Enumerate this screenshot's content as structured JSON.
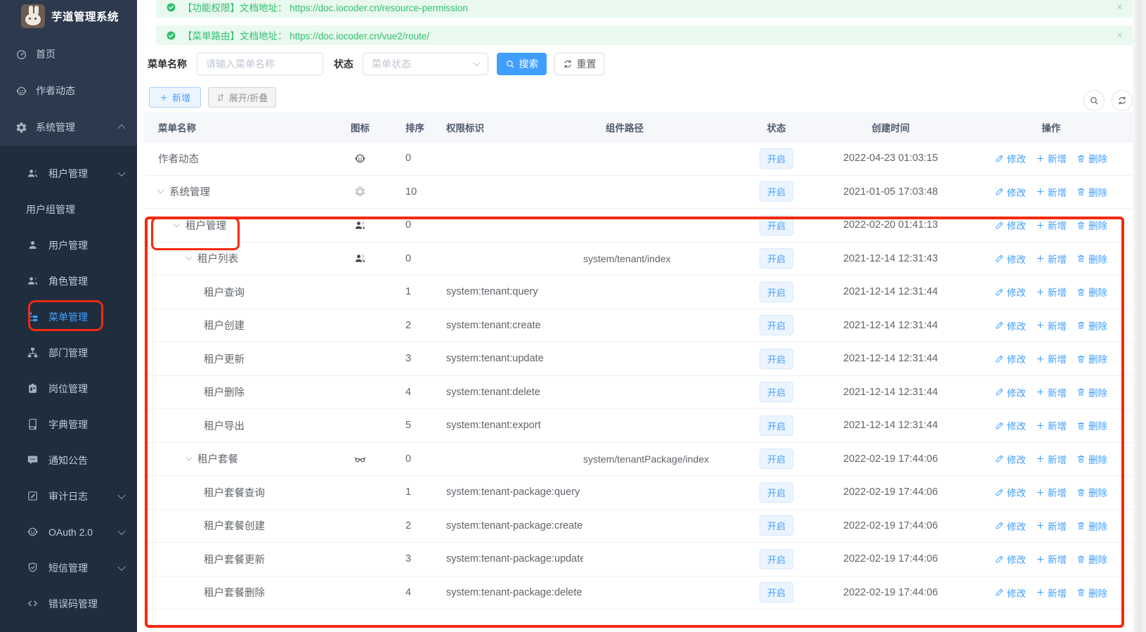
{
  "app": {
    "title": "芋道管理系统",
    "avatar_icon": "rabbit-avatar"
  },
  "alerts": [
    {
      "icon": "check-circle-icon",
      "text": "【功能权限】文档地址： https://doc.iocoder.cn/resource-permission",
      "close_icon": "close-icon"
    },
    {
      "icon": "check-circle-icon",
      "text": "【菜单路由】文档地址： https://doc.iocoder.cn/vue2/route/",
      "close_icon": "close-icon"
    }
  ],
  "sidebar": {
    "top_items": [
      {
        "label": "首页",
        "icon": "dashboard-icon"
      },
      {
        "label": "作者动态",
        "icon": "robot-icon"
      },
      {
        "label": "系统管理",
        "icon": "gear-icon",
        "chevron": "up"
      }
    ],
    "sub_items": [
      {
        "label": "租户管理",
        "icon": "users-icon",
        "chevron": "down"
      },
      {
        "label": "用户组管理"
      },
      {
        "label": "用户管理",
        "icon": "user-icon"
      },
      {
        "label": "角色管理",
        "icon": "users-icon"
      },
      {
        "label": "菜单管理",
        "icon": "tree-icon",
        "active": true
      },
      {
        "label": "部门管理",
        "icon": "org-icon"
      },
      {
        "label": "岗位管理",
        "icon": "badge-icon"
      },
      {
        "label": "字典管理",
        "icon": "book-icon"
      },
      {
        "label": "通知公告",
        "icon": "chat-icon"
      },
      {
        "label": "审计日志",
        "icon": "log-icon",
        "chevron": "down"
      },
      {
        "label": "OAuth 2.0",
        "icon": "robot-icon",
        "chevron": "down"
      },
      {
        "label": "短信管理",
        "icon": "shield-icon",
        "chevron": "down"
      },
      {
        "label": "错误码管理",
        "icon": "code-icon"
      }
    ]
  },
  "filters": {
    "name_label": "菜单名称",
    "name_placeholder": "请输入菜单名称",
    "status_label": "状态",
    "status_placeholder": "菜单状态",
    "search_label": "搜索",
    "search_icon": "magnifier-icon",
    "reset_label": "重置",
    "reset_icon": "refresh-icon"
  },
  "toolbar": {
    "add_label": "新增",
    "add_icon": "plus-icon",
    "expand_collapse_label": "展开/折叠",
    "expand_collapse_icon": "sort-updown-icon",
    "search_icon": "magnifier-icon",
    "refresh_icon": "refresh-icon"
  },
  "table": {
    "columns": [
      "菜单名称",
      "图标",
      "排序",
      "权限标识",
      "组件路径",
      "状态",
      "创建时间",
      "操作"
    ],
    "status_open_label": "开启",
    "action_edit": "修改",
    "action_add": "新增",
    "action_delete": "删除",
    "rows": [
      {
        "name": "作者动态",
        "level": 0,
        "caret": false,
        "icon": "robot-icon",
        "icon_color": "#41464d",
        "sort": "0",
        "perm": "",
        "component": "",
        "time": "2022-04-23 01:03:15"
      },
      {
        "name": "系统管理",
        "level": 0,
        "caret": true,
        "icon": "gear-icon",
        "icon_color": "#c8ccd2",
        "sort": "10",
        "perm": "",
        "component": "",
        "time": "2021-01-05 17:03:48"
      },
      {
        "name": "租户管理",
        "level": 1,
        "caret": true,
        "icon": "users-icon",
        "icon_color": "#41464d",
        "sort": "0",
        "perm": "",
        "component": "",
        "time": "2022-02-20 01:41:13",
        "annotated": true
      },
      {
        "name": "租户列表",
        "level": 2,
        "caret": true,
        "icon": "users-icon",
        "icon_color": "#41464d",
        "sort": "0",
        "perm": "",
        "component": "system/tenant/index",
        "time": "2021-12-14 12:31:43"
      },
      {
        "name": "租户查询",
        "level": 3,
        "caret": false,
        "icon": "",
        "sort": "1",
        "perm": "system:tenant:query",
        "component": "",
        "time": "2021-12-14 12:31:44"
      },
      {
        "name": "租户创建",
        "level": 3,
        "caret": false,
        "icon": "",
        "sort": "2",
        "perm": "system:tenant:create",
        "component": "",
        "time": "2021-12-14 12:31:44"
      },
      {
        "name": "租户更新",
        "level": 3,
        "caret": false,
        "icon": "",
        "sort": "3",
        "perm": "system:tenant:update",
        "component": "",
        "time": "2021-12-14 12:31:44"
      },
      {
        "name": "租户删除",
        "level": 3,
        "caret": false,
        "icon": "",
        "sort": "4",
        "perm": "system:tenant:delete",
        "component": "",
        "time": "2021-12-14 12:31:44"
      },
      {
        "name": "租户导出",
        "level": 3,
        "caret": false,
        "icon": "",
        "sort": "5",
        "perm": "system:tenant:export",
        "component": "",
        "time": "2021-12-14 12:31:44"
      },
      {
        "name": "租户套餐",
        "level": 2,
        "caret": true,
        "icon": "glasses-icon",
        "icon_color": "#41464d",
        "sort": "0",
        "perm": "",
        "component": "system/tenantPackage/index",
        "time": "2022-02-19 17:44:06"
      },
      {
        "name": "租户套餐查询",
        "level": 3,
        "caret": false,
        "icon": "",
        "sort": "1",
        "perm": "system:tenant-package:query",
        "component": "",
        "time": "2022-02-19 17:44:06"
      },
      {
        "name": "租户套餐创建",
        "level": 3,
        "caret": false,
        "icon": "",
        "sort": "2",
        "perm": "system:tenant-package:create",
        "component": "",
        "time": "2022-02-19 17:44:06"
      },
      {
        "name": "租户套餐更新",
        "level": 3,
        "caret": false,
        "icon": "",
        "sort": "3",
        "perm": "system:tenant-package:update",
        "component": "",
        "time": "2022-02-19 17:44:06"
      },
      {
        "name": "租户套餐删除",
        "level": 3,
        "caret": false,
        "icon": "",
        "sort": "4",
        "perm": "system:tenant-package:delete",
        "component": "",
        "time": "2022-02-19 17:44:06"
      }
    ]
  },
  "colors": {
    "accent": "#409eff",
    "success": "#31bf6d",
    "success_bg": "#e9f9ef",
    "sidebar_bg": "#2d3a4e",
    "submenu_bg": "#1f2d3d",
    "sidebar_text": "#bfcbd9",
    "annotation_red": "#f5290f",
    "tag_bg": "#ecf5ff",
    "tag_border": "#d5e8fd",
    "table_header_bg": "#f5f7fa"
  }
}
